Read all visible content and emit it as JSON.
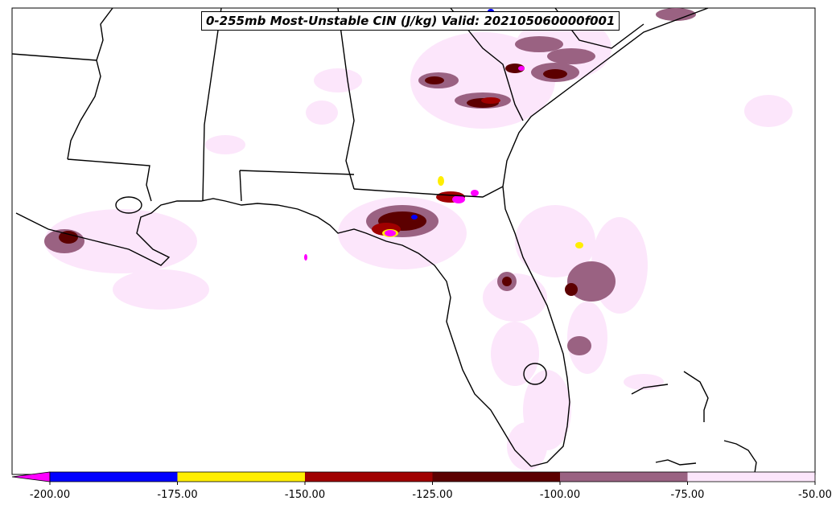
{
  "title": "0-255mb Most-Unstable CIN (J/kg) Valid: 202105060000f001",
  "colorbar": {
    "extend": "min",
    "ticks": [
      "-200.00",
      "-175.00",
      "-150.00",
      "-125.00",
      "-100.00",
      "-75.00",
      "-50.00"
    ],
    "levels": [
      {
        "from": -200,
        "to": -175,
        "color": "#0000ff"
      },
      {
        "from": -175,
        "to": -150,
        "color": "#ffee00"
      },
      {
        "from": -150,
        "to": -125,
        "color": "#a00000"
      },
      {
        "from": -125,
        "to": -100,
        "color": "#5c0000"
      },
      {
        "from": -100,
        "to": -75,
        "color": "#9a6282"
      },
      {
        "from": -75,
        "to": -50,
        "color": "#fce6fb"
      }
    ],
    "under_color": "#ff00ff"
  },
  "map": {
    "region": "Southeastern United States / Florida / Gulf of Mexico",
    "background": "#ffffff",
    "boundary_color": "#000000"
  }
}
